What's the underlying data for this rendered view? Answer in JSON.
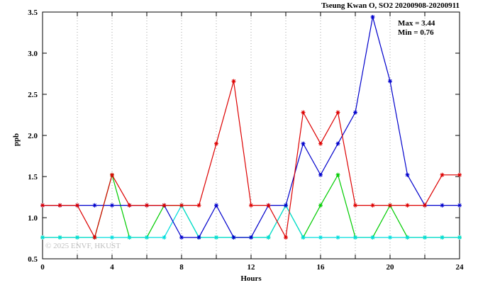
{
  "title": "Tseung Kwan O, SO2 20200908-20200911",
  "annotation": {
    "max_label": "Max = 3.44",
    "min_label": "Min = 0.76"
  },
  "watermark": "© 2025 ENVF, HKUST",
  "chart_data": {
    "type": "line",
    "title": "Tseung Kwan O, SO2 20200908-20200911",
    "xlabel": "Hours",
    "ylabel": "ppb",
    "xlim": [
      0,
      24
    ],
    "ylim": [
      0.5,
      3.5
    ],
    "xticks_labeled": [
      0,
      4,
      8,
      12,
      16,
      20,
      24
    ],
    "xticks_minor_every": 2,
    "yticks": [
      0.5,
      1.0,
      1.5,
      2.0,
      2.5,
      3.0,
      3.5
    ],
    "grid": {
      "vertical_dotted_every": 2,
      "horizontal": false
    },
    "legend": "none",
    "marker": "asterisk",
    "max": 3.44,
    "min": 0.76,
    "x": [
      0,
      1,
      2,
      3,
      4,
      5,
      6,
      7,
      8,
      9,
      10,
      11,
      12,
      13,
      14,
      15,
      16,
      17,
      18,
      19,
      20,
      21,
      22,
      23,
      24
    ],
    "series": [
      {
        "name": "green",
        "color": "#00cc00",
        "values": [
          0.76,
          0.76,
          0.76,
          0.76,
          1.52,
          0.76,
          0.76,
          1.15,
          1.15,
          0.76,
          0.76,
          0.76,
          0.76,
          0.76,
          1.15,
          0.76,
          1.15,
          1.52,
          0.76,
          0.76,
          1.15,
          0.76,
          0.76,
          0.76,
          0.76
        ]
      },
      {
        "name": "cyan",
        "color": "#00dddd",
        "values": [
          0.76,
          0.76,
          0.76,
          0.76,
          0.76,
          0.76,
          0.76,
          0.76,
          1.15,
          0.76,
          0.76,
          0.76,
          0.76,
          0.76,
          1.15,
          0.76,
          0.76,
          0.76,
          0.76,
          0.76,
          0.76,
          0.76,
          0.76,
          0.76,
          0.76
        ]
      },
      {
        "name": "blue",
        "color": "#0000cc",
        "values": [
          1.15,
          1.15,
          1.15,
          1.15,
          1.15,
          1.15,
          1.15,
          1.15,
          0.76,
          0.76,
          1.15,
          0.76,
          0.76,
          1.15,
          1.15,
          1.9,
          1.52,
          1.9,
          2.28,
          3.44,
          2.66,
          1.52,
          1.15,
          1.15,
          1.15
        ]
      },
      {
        "name": "red",
        "color": "#dd0000",
        "values": [
          1.15,
          1.15,
          1.15,
          0.76,
          1.52,
          1.15,
          1.15,
          1.15,
          1.15,
          1.15,
          1.9,
          2.66,
          1.15,
          1.15,
          0.76,
          2.28,
          1.9,
          2.28,
          1.15,
          1.15,
          1.15,
          1.15,
          1.15,
          1.52,
          1.52
        ]
      }
    ]
  }
}
